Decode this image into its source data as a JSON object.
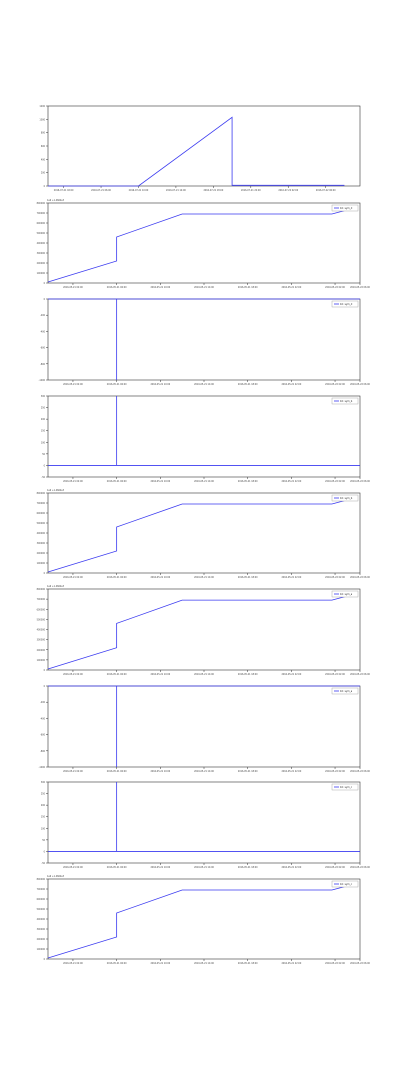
{
  "colors": {
    "line": "#3a3af0",
    "frame": "#333333",
    "tick_text": "#444444"
  },
  "chart_data": [
    {
      "type": "line",
      "legend": null,
      "offset_text": "",
      "ylim": [
        0,
        1200
      ],
      "yticks": [
        0,
        200,
        400,
        600,
        800,
        1000,
        1200
      ],
      "ytick_labels": [
        "0",
        "200",
        "400",
        "600",
        "800",
        "1000",
        "1200"
      ],
      "xticks": [
        0.05,
        0.17,
        0.29,
        0.41,
        0.53,
        0.65,
        0.77,
        0.89
      ],
      "xtick_labels": [
        "2016-07-21 02:00",
        "2016-07-21 06:00",
        "2016-07-21 10:00",
        "2016-07-21 14:00",
        "2016-07-21 18:00",
        "2016-07-21 22:00",
        "2016-07-22 02:00",
        "2016-07-22 06:00"
      ],
      "series": [
        {
          "x": [
            0.0,
            0.29,
            0.59,
            0.59,
            0.95
          ],
          "y": [
            0,
            0,
            1030,
            10,
            10
          ]
        }
      ]
    },
    {
      "type": "line",
      "legend": "10: sym_d",
      "offset_text": "1e6 +1.4662e3",
      "ylim": [
        0,
        800000
      ],
      "yticks": [
        0,
        100000,
        200000,
        300000,
        400000,
        500000,
        600000,
        700000,
        800000
      ],
      "ytick_labels": [
        "0",
        "100000",
        "200000",
        "300000",
        "400000",
        "500000",
        "600000",
        "700000",
        "800000"
      ],
      "xticks": [
        0.08,
        0.22,
        0.36,
        0.5,
        0.64,
        0.78,
        0.92,
        1.0
      ],
      "xtick_labels": [
        "2016-05-21 02:00",
        "2016-05-21 06:00",
        "2016-05-21 10:00",
        "2016-05-21 14:00",
        "2016-05-21 18:00",
        "2016-05-21 22:00",
        "2016-05-22 02:00",
        "2016-05-22 06:00"
      ],
      "series": [
        {
          "x": [
            0.0,
            0.22,
            0.22,
            0.43,
            0.91,
            0.97
          ],
          "y": [
            10000,
            220000,
            460000,
            690000,
            690000,
            740000
          ]
        }
      ]
    },
    {
      "type": "line",
      "legend": "10: sym_d",
      "offset_text": "",
      "ylim": [
        -1000,
        0
      ],
      "yticks": [
        -1000,
        -800,
        -600,
        -400,
        -200,
        0
      ],
      "ytick_labels": [
        "-1000",
        "-800",
        "-600",
        "-400",
        "-200",
        "0"
      ],
      "xticks": [
        0.08,
        0.22,
        0.36,
        0.5,
        0.64,
        0.78,
        0.92,
        1.0
      ],
      "xtick_labels": [
        "2016-05-21 02:00",
        "2016-05-21 06:00",
        "2016-05-21 10:00",
        "2016-05-21 14:00",
        "2016-05-21 18:00",
        "2016-05-21 22:00",
        "2016-05-22 02:00",
        "2016-05-22 06:00"
      ],
      "series": [
        {
          "x": [
            0.0,
            0.22,
            0.22,
            0.22,
            1.0
          ],
          "y": [
            0,
            0,
            -1000,
            0,
            0
          ]
        }
      ]
    },
    {
      "type": "line",
      "legend": "10: sym_b",
      "offset_text": "",
      "ylim": [
        -50,
        300
      ],
      "yticks": [
        -50,
        0,
        50,
        100,
        150,
        200,
        250,
        300
      ],
      "ytick_labels": [
        "-50",
        "0",
        "50",
        "100",
        "150",
        "200",
        "250",
        "300"
      ],
      "xticks": [
        0.08,
        0.22,
        0.36,
        0.5,
        0.64,
        0.78,
        0.92,
        1.0
      ],
      "xtick_labels": [
        "2016-05-21 02:00",
        "2016-05-21 06:00",
        "2016-05-21 10:00",
        "2016-05-21 14:00",
        "2016-05-21 18:00",
        "2016-05-21 22:00",
        "2016-05-22 02:00",
        "2016-05-22 06:00"
      ],
      "series": [
        {
          "x": [
            0.0,
            0.22,
            0.22,
            0.22,
            1.0
          ],
          "y": [
            0,
            0,
            300,
            0,
            0
          ]
        }
      ]
    },
    {
      "type": "line",
      "legend": "10: sym_b",
      "offset_text": "1e6 +1.4662e3",
      "ylim": [
        0,
        800000
      ],
      "yticks": [
        0,
        100000,
        200000,
        300000,
        400000,
        500000,
        600000,
        700000,
        800000
      ],
      "ytick_labels": [
        "0",
        "100000",
        "200000",
        "300000",
        "400000",
        "500000",
        "600000",
        "700000",
        "800000"
      ],
      "xticks": [
        0.08,
        0.22,
        0.36,
        0.5,
        0.64,
        0.78,
        0.92,
        1.0
      ],
      "xtick_labels": [
        "2016-05-21 02:00",
        "2016-05-21 06:00",
        "2016-05-21 10:00",
        "2016-05-21 14:00",
        "2016-05-21 18:00",
        "2016-05-21 22:00",
        "2016-05-22 02:00",
        "2016-05-22 06:00"
      ],
      "series": [
        {
          "x": [
            0.0,
            0.22,
            0.22,
            0.43,
            0.91,
            0.97
          ],
          "y": [
            10000,
            220000,
            460000,
            690000,
            690000,
            740000
          ]
        }
      ]
    },
    {
      "type": "line",
      "legend": "10: sym_a",
      "offset_text": "1e6 +1.4662e3",
      "ylim": [
        0,
        800000
      ],
      "yticks": [
        0,
        100000,
        200000,
        300000,
        400000,
        500000,
        600000,
        700000,
        800000
      ],
      "ytick_labels": [
        "0",
        "100000",
        "200000",
        "300000",
        "400000",
        "500000",
        "600000",
        "700000",
        "800000"
      ],
      "xticks": [
        0.08,
        0.22,
        0.36,
        0.5,
        0.64,
        0.78,
        0.92,
        1.0
      ],
      "xtick_labels": [
        "2016-05-21 02:00",
        "2016-05-21 06:00",
        "2016-05-21 10:00",
        "2016-05-21 14:00",
        "2016-05-21 18:00",
        "2016-05-21 22:00",
        "2016-05-22 02:00",
        "2016-05-22 06:00"
      ],
      "series": [
        {
          "x": [
            0.0,
            0.22,
            0.22,
            0.43,
            0.91,
            0.97
          ],
          "y": [
            10000,
            220000,
            460000,
            690000,
            690000,
            740000
          ]
        }
      ]
    },
    {
      "type": "line",
      "legend": "10: sym_a",
      "offset_text": "",
      "ylim": [
        -1000,
        0
      ],
      "yticks": [
        -1000,
        -800,
        -600,
        -400,
        -200,
        0
      ],
      "ytick_labels": [
        "-1000",
        "-800",
        "-600",
        "-400",
        "-200",
        "0"
      ],
      "xticks": [
        0.08,
        0.22,
        0.36,
        0.5,
        0.64,
        0.78,
        0.92,
        1.0
      ],
      "xtick_labels": [
        "2016-05-21 02:00",
        "2016-05-21 06:00",
        "2016-05-21 10:00",
        "2016-05-21 14:00",
        "2016-05-21 18:00",
        "2016-05-21 22:00",
        "2016-05-22 02:00",
        "2016-05-22 06:00"
      ],
      "series": [
        {
          "x": [
            0.0,
            0.22,
            0.22,
            0.22,
            1.0
          ],
          "y": [
            0,
            0,
            -1000,
            0,
            0
          ]
        }
      ]
    },
    {
      "type": "line",
      "legend": "10: sym_c",
      "offset_text": "",
      "ylim": [
        -50,
        300
      ],
      "yticks": [
        -50,
        0,
        50,
        100,
        150,
        200,
        250,
        300
      ],
      "ytick_labels": [
        "-50",
        "0",
        "50",
        "100",
        "150",
        "200",
        "250",
        "300"
      ],
      "xticks": [
        0.08,
        0.22,
        0.36,
        0.5,
        0.64,
        0.78,
        0.92,
        1.0
      ],
      "xtick_labels": [
        "2016-05-21 02:00",
        "2016-05-21 06:00",
        "2016-05-21 10:00",
        "2016-05-21 14:00",
        "2016-05-21 18:00",
        "2016-05-21 22:00",
        "2016-05-22 02:00",
        "2016-05-22 06:00"
      ],
      "series": [
        {
          "x": [
            0.0,
            0.22,
            0.22,
            0.22,
            1.0
          ],
          "y": [
            0,
            0,
            300,
            0,
            0
          ]
        }
      ]
    },
    {
      "type": "line",
      "legend": "10: sym_c",
      "offset_text": "1e6 +1.4662e3",
      "ylim": [
        0,
        800000
      ],
      "yticks": [
        0,
        100000,
        200000,
        300000,
        400000,
        500000,
        600000,
        700000,
        800000
      ],
      "ytick_labels": [
        "0",
        "100000",
        "200000",
        "300000",
        "400000",
        "500000",
        "600000",
        "700000",
        "800000"
      ],
      "xticks": [
        0.08,
        0.22,
        0.36,
        0.5,
        0.64,
        0.78,
        0.92,
        1.0
      ],
      "xtick_labels": [
        "2016-05-21 02:00",
        "2016-05-21 06:00",
        "2016-05-21 10:00",
        "2016-05-21 14:00",
        "2016-05-21 18:00",
        "2016-05-21 22:00",
        "2016-05-22 02:00",
        "2016-05-22 06:00"
      ],
      "series": [
        {
          "x": [
            0.0,
            0.22,
            0.22,
            0.43,
            0.91,
            0.97
          ],
          "y": [
            10000,
            220000,
            460000,
            690000,
            690000,
            740000
          ]
        }
      ]
    }
  ]
}
